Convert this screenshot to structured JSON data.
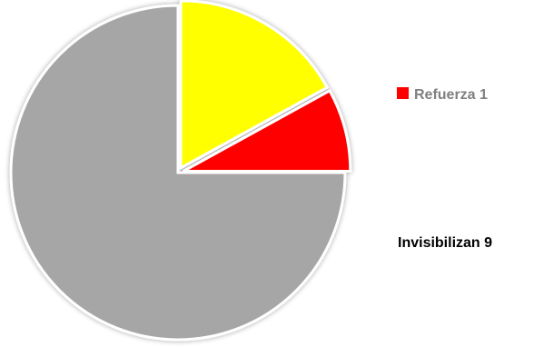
{
  "chart_data": {
    "type": "pie",
    "slices": [
      {
        "value": 8,
        "color": "#ff0000",
        "exploded": true
      },
      {
        "value": 17,
        "color": "#ffff00",
        "exploded": true
      },
      {
        "value": 75,
        "color": "#a6a6a6",
        "exploded": false
      }
    ],
    "legend": [
      {
        "label": "Refuerza 1",
        "color": "#ff0000",
        "text_color": "#808080"
      }
    ],
    "annotations": [
      {
        "text": "Invisibilizan 9"
      }
    ]
  }
}
